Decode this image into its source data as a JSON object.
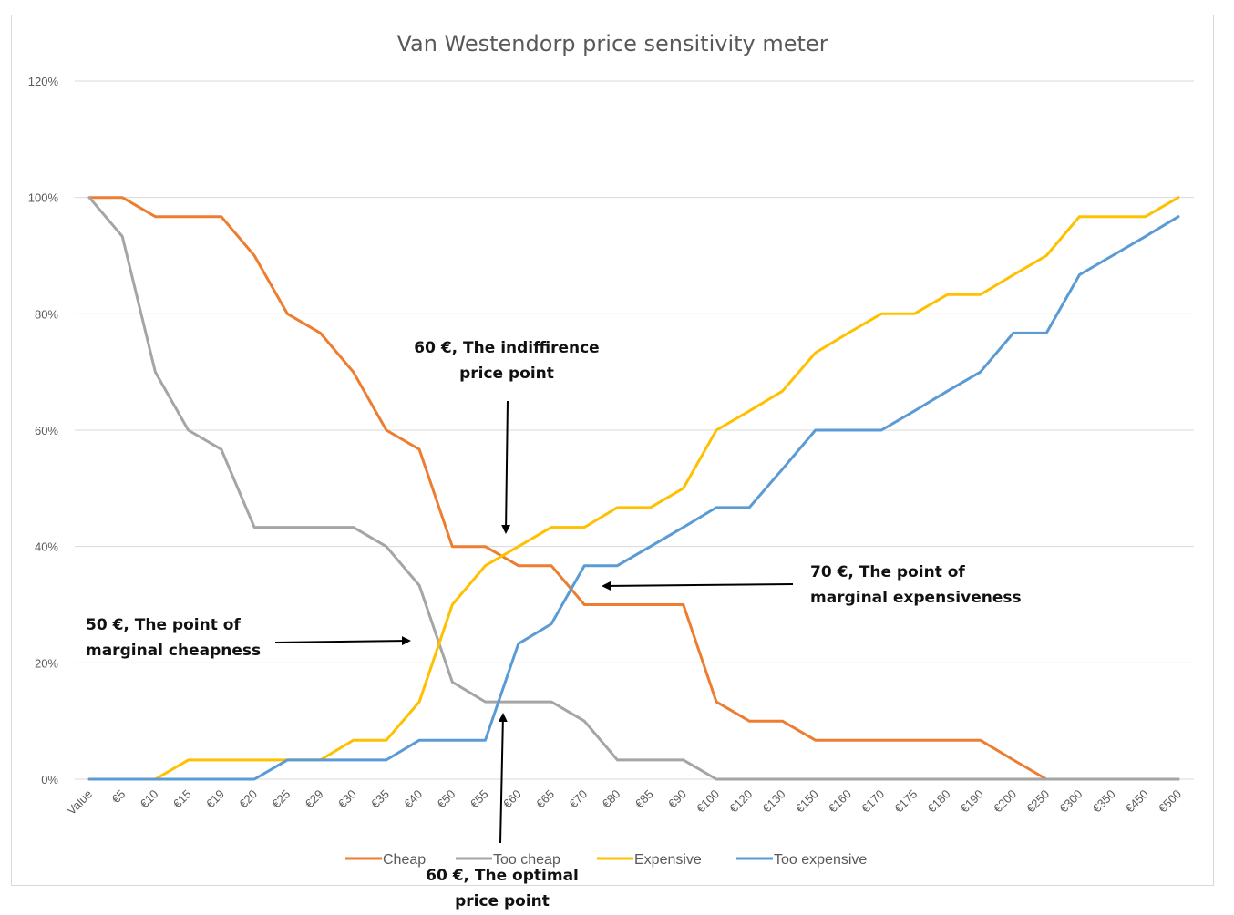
{
  "chart_data": {
    "type": "line",
    "title": "Van Westendorp price sensitivity meter",
    "categories": [
      "Value",
      "€5",
      "€10",
      "€15",
      "€19",
      "€20",
      "€25",
      "€29",
      "€30",
      "€35",
      "€40",
      "€50",
      "€55",
      "€60",
      "€65",
      "€70",
      "€80",
      "€85",
      "€90",
      "€100",
      "€120",
      "€130",
      "€150",
      "€160",
      "€170",
      "€175",
      "€180",
      "€190",
      "€200",
      "€250",
      "€300",
      "€350",
      "€450",
      "€500"
    ],
    "y_ticks": [
      "0%",
      "20%",
      "40%",
      "60%",
      "80%",
      "100%",
      "120%"
    ],
    "ylim": [
      0,
      120
    ],
    "grid": true,
    "legend_position": "bottom",
    "series": [
      {
        "name": "Cheap",
        "color": "#ED7D31",
        "values": [
          100,
          100,
          96.7,
          96.7,
          96.7,
          90,
          80,
          76.7,
          70,
          60,
          56.7,
          40,
          40,
          36.7,
          36.7,
          30,
          30,
          30,
          30,
          13.3,
          10,
          10,
          6.7,
          6.7,
          6.7,
          6.7,
          6.7,
          6.7,
          3.3,
          0,
          0,
          0,
          0,
          0
        ]
      },
      {
        "name": "Too cheap",
        "color": "#A5A5A5",
        "values": [
          100,
          93.3,
          70,
          60,
          56.7,
          43.3,
          43.3,
          43.3,
          43.3,
          40,
          33.3,
          16.7,
          13.3,
          13.3,
          13.3,
          10,
          3.3,
          3.3,
          3.3,
          0,
          0,
          0,
          0,
          0,
          0,
          0,
          0,
          0,
          0,
          0,
          0,
          0,
          0,
          0
        ]
      },
      {
        "name": "Expensive",
        "color": "#FFC000",
        "values": [
          0,
          0,
          0,
          3.3,
          3.3,
          3.3,
          3.3,
          3.3,
          6.7,
          6.7,
          13.3,
          30,
          36.7,
          40,
          43.3,
          43.3,
          46.7,
          46.7,
          50,
          60,
          63.3,
          66.7,
          73.3,
          76.7,
          80,
          80,
          83.3,
          83.3,
          86.7,
          90,
          96.7,
          96.7,
          96.7,
          100
        ]
      },
      {
        "name": "Too expensive",
        "color": "#5B9BD5",
        "values": [
          0,
          0,
          0,
          0,
          0,
          0,
          3.3,
          3.3,
          3.3,
          3.3,
          6.7,
          6.7,
          6.7,
          23.3,
          26.7,
          36.7,
          36.7,
          40,
          43.3,
          46.7,
          46.7,
          53.3,
          60,
          60,
          60,
          63.3,
          66.7,
          70,
          76.7,
          76.7,
          86.7,
          90,
          93.3,
          96.7
        ]
      }
    ],
    "annotations": [
      {
        "line1": "60 €, The indiffirence",
        "line2": "price point"
      },
      {
        "line1": "70 €, The point of",
        "line2": "marginal expensiveness"
      },
      {
        "line1": "50 €, The point of",
        "line2": "marginal cheapness"
      },
      {
        "line1": "60 €, The optimal",
        "line2": "price point"
      }
    ]
  }
}
